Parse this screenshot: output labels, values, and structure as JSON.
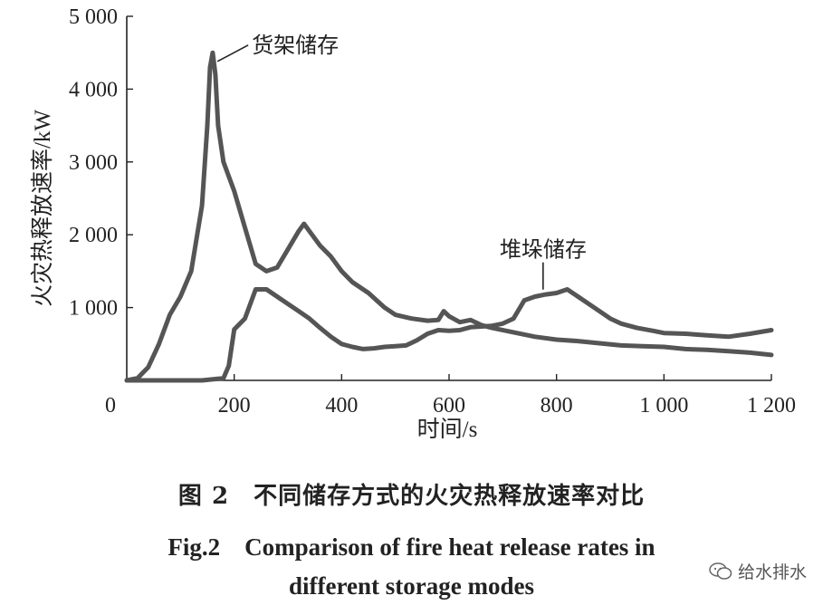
{
  "chart_data": {
    "type": "line",
    "xlabel": "时间/s",
    "ylabel": "火灾热释放速率/kW",
    "xlim": [
      0,
      1200
    ],
    "ylim": [
      0,
      5000
    ],
    "x_ticks": [
      "0",
      "200",
      "400",
      "600",
      "800",
      "1 000",
      "1 200"
    ],
    "y_ticks": [
      "1 000",
      "2 000",
      "3 000",
      "4 000",
      "5 000"
    ],
    "grid": false,
    "line_color": "#555555",
    "series": [
      {
        "name": "货架储存",
        "points": [
          [
            0,
            0
          ],
          [
            20,
            30
          ],
          [
            40,
            180
          ],
          [
            60,
            500
          ],
          [
            80,
            900
          ],
          [
            100,
            1150
          ],
          [
            120,
            1500
          ],
          [
            140,
            2400
          ],
          [
            150,
            3500
          ],
          [
            155,
            4300
          ],
          [
            160,
            4500
          ],
          [
            165,
            4200
          ],
          [
            170,
            3500
          ],
          [
            180,
            3000
          ],
          [
            200,
            2600
          ],
          [
            220,
            2100
          ],
          [
            240,
            1600
          ],
          [
            260,
            1500
          ],
          [
            280,
            1550
          ],
          [
            300,
            1800
          ],
          [
            320,
            2050
          ],
          [
            330,
            2150
          ],
          [
            340,
            2050
          ],
          [
            360,
            1850
          ],
          [
            380,
            1700
          ],
          [
            400,
            1500
          ],
          [
            420,
            1350
          ],
          [
            450,
            1200
          ],
          [
            480,
            1000
          ],
          [
            500,
            900
          ],
          [
            530,
            850
          ],
          [
            560,
            820
          ],
          [
            580,
            830
          ],
          [
            590,
            950
          ],
          [
            600,
            880
          ],
          [
            620,
            800
          ],
          [
            640,
            830
          ],
          [
            660,
            760
          ],
          [
            680,
            720
          ],
          [
            720,
            660
          ],
          [
            760,
            600
          ],
          [
            800,
            560
          ],
          [
            840,
            540
          ],
          [
            880,
            510
          ],
          [
            920,
            480
          ],
          [
            960,
            470
          ],
          [
            1000,
            460
          ],
          [
            1040,
            430
          ],
          [
            1080,
            420
          ],
          [
            1120,
            400
          ],
          [
            1160,
            380
          ],
          [
            1200,
            350
          ]
        ]
      },
      {
        "name": "堆垛储存",
        "points": [
          [
            0,
            0
          ],
          [
            80,
            0
          ],
          [
            140,
            0
          ],
          [
            180,
            30
          ],
          [
            190,
            200
          ],
          [
            200,
            700
          ],
          [
            220,
            850
          ],
          [
            240,
            1250
          ],
          [
            260,
            1250
          ],
          [
            280,
            1150
          ],
          [
            300,
            1050
          ],
          [
            320,
            950
          ],
          [
            340,
            850
          ],
          [
            360,
            720
          ],
          [
            380,
            600
          ],
          [
            400,
            500
          ],
          [
            420,
            460
          ],
          [
            440,
            430
          ],
          [
            460,
            440
          ],
          [
            480,
            460
          ],
          [
            500,
            470
          ],
          [
            520,
            480
          ],
          [
            540,
            550
          ],
          [
            560,
            640
          ],
          [
            580,
            690
          ],
          [
            600,
            680
          ],
          [
            620,
            690
          ],
          [
            640,
            730
          ],
          [
            660,
            740
          ],
          [
            680,
            750
          ],
          [
            700,
            780
          ],
          [
            720,
            850
          ],
          [
            740,
            1100
          ],
          [
            760,
            1150
          ],
          [
            780,
            1180
          ],
          [
            800,
            1200
          ],
          [
            820,
            1250
          ],
          [
            840,
            1150
          ],
          [
            860,
            1050
          ],
          [
            880,
            950
          ],
          [
            900,
            850
          ],
          [
            920,
            780
          ],
          [
            950,
            720
          ],
          [
            980,
            680
          ],
          [
            1000,
            650
          ],
          [
            1040,
            640
          ],
          [
            1080,
            620
          ],
          [
            1120,
            600
          ],
          [
            1160,
            640
          ],
          [
            1200,
            690
          ]
        ]
      }
    ],
    "annotations": [
      {
        "text": "货架储存",
        "series": 0,
        "at_x": 162
      },
      {
        "text": "堆垛储存",
        "series": 1,
        "at_x": 775
      }
    ]
  },
  "caption": {
    "zh": "图 2　不同储存方式的火灾热释放速率对比",
    "en_line1": "Fig.2　Comparison of fire heat release rates in",
    "en_line2": "different storage modes"
  },
  "watermark": {
    "text": "给水排水",
    "icon": "wechat-icon"
  }
}
